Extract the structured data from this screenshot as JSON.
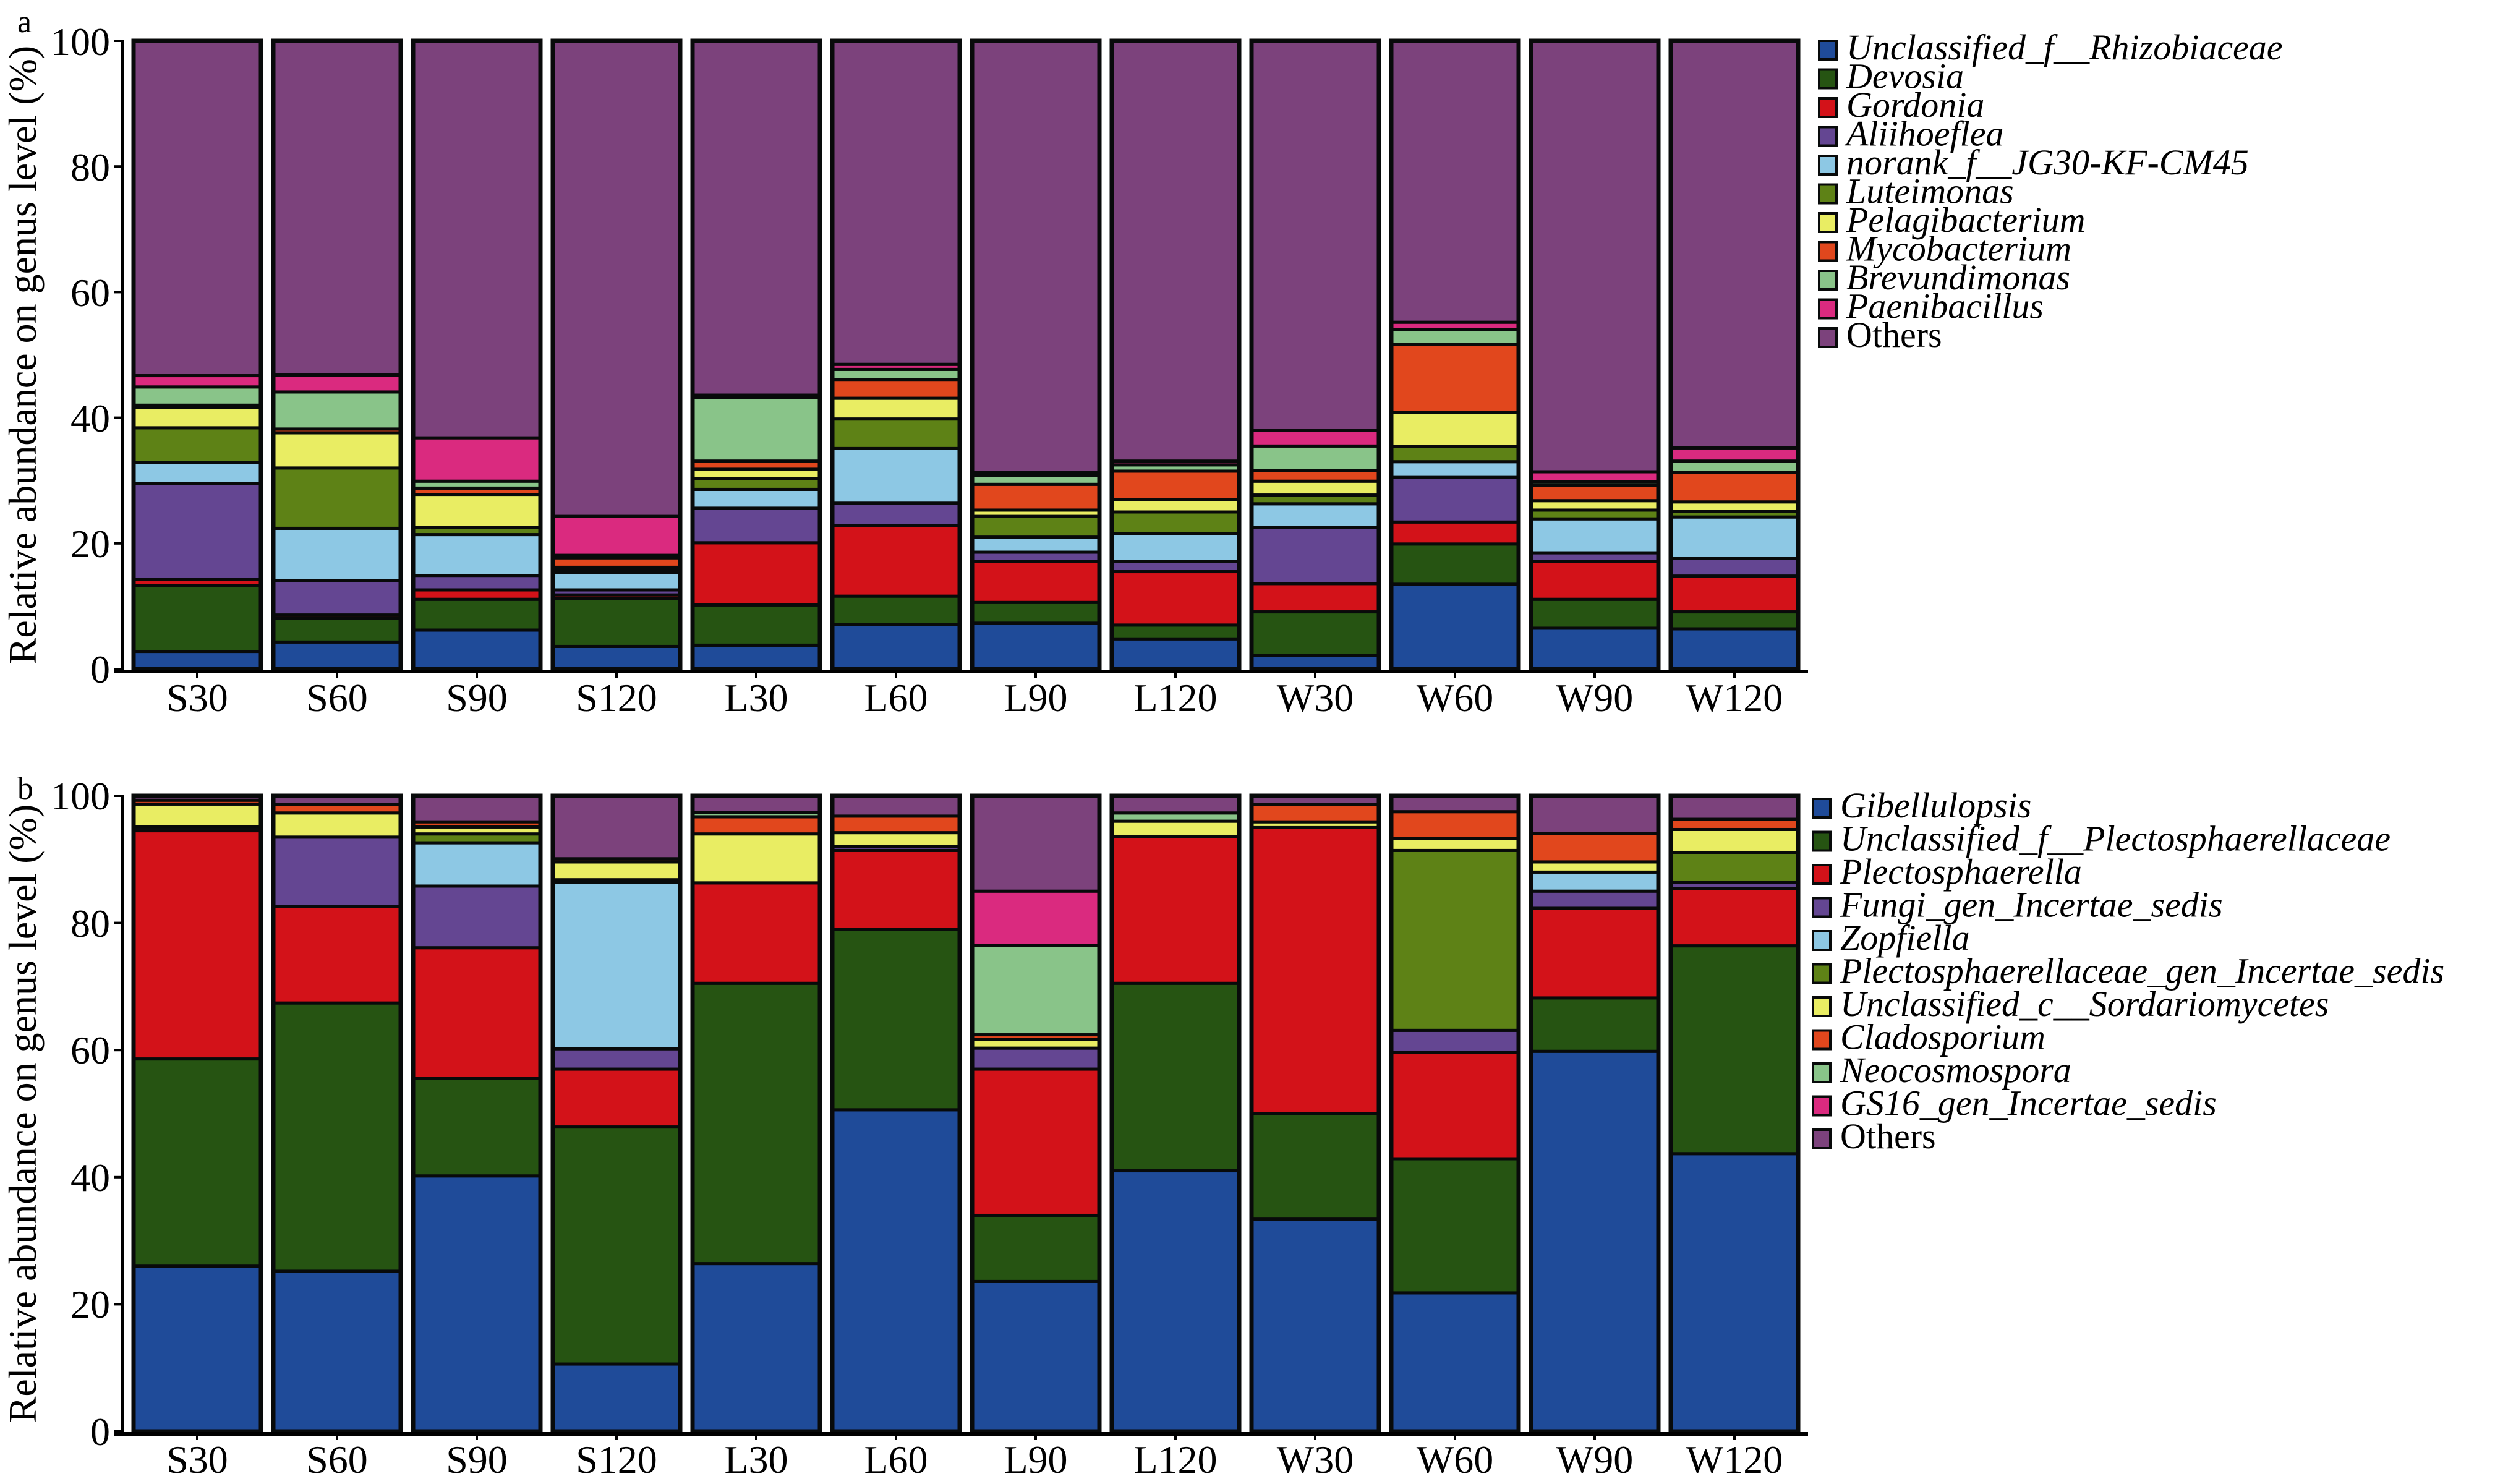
{
  "chart_data": [
    {
      "type": "bar",
      "stacked": true,
      "panel_label": "a",
      "title": "",
      "xlabel": "",
      "ylabel": "Relative abundance on genus level (%)",
      "ylim": [
        0,
        100
      ],
      "yticks": [
        "0",
        "20",
        "40",
        "60",
        "80",
        "100"
      ],
      "grid": false,
      "legend_position": "right",
      "categories": [
        "S30",
        "S60",
        "S90",
        "S120",
        "L30",
        "L60",
        "L90",
        "L120",
        "W30",
        "W60",
        "W90",
        "W120"
      ],
      "series": [
        {
          "name": "Unclassified_f__Rhizobiaceae",
          "italic": true,
          "color": "#1f4b99",
          "values": [
            2.8,
            4.3,
            6.2,
            3.6,
            3.8,
            7.1,
            7.3,
            4.8,
            2.2,
            13.5,
            6.5,
            6.4
          ]
        },
        {
          "name": "Devosia",
          "italic": true,
          "color": "#265412",
          "values": [
            10.5,
            3.8,
            4.9,
            7.6,
            6.4,
            4.5,
            3.3,
            2.2,
            6.9,
            6.4,
            4.6,
            2.7
          ]
        },
        {
          "name": "Gordonia",
          "italic": true,
          "color": "#d31219",
          "values": [
            1.0,
            0.5,
            1.5,
            0.6,
            9.9,
            11.2,
            6.5,
            8.5,
            4.5,
            3.5,
            6.0,
            5.7
          ]
        },
        {
          "name": "Aliihoeflea",
          "italic": true,
          "color": "#644692",
          "values": [
            15.2,
            5.5,
            2.3,
            0.8,
            5.5,
            3.6,
            1.5,
            1.6,
            8.9,
            7.1,
            1.4,
            2.8
          ]
        },
        {
          "name": "norank_f__JG30-KF-CM45",
          "italic": true,
          "color": "#8dc8e4",
          "values": [
            3.4,
            8.3,
            6.5,
            2.8,
            3.0,
            8.7,
            2.4,
            4.5,
            3.8,
            2.5,
            5.4,
            6.6
          ]
        },
        {
          "name": "Luteimonas",
          "italic": true,
          "color": "#5e8216",
          "values": [
            5.5,
            9.6,
            1.1,
            0.4,
            1.7,
            4.7,
            3.3,
            3.4,
            1.4,
            2.4,
            1.4,
            0.9
          ]
        },
        {
          "name": "Pelagibacterium",
          "italic": true,
          "color": "#e9ed63",
          "values": [
            3.2,
            5.6,
            5.3,
            0.4,
            1.5,
            3.3,
            1.0,
            2.0,
            2.2,
            5.4,
            1.5,
            1.5
          ]
        },
        {
          "name": "Mycobacterium",
          "italic": true,
          "color": "#e1471d",
          "values": [
            0.4,
            0.6,
            1.0,
            1.5,
            1.3,
            3.0,
            4.1,
            4.5,
            1.7,
            10.9,
            2.4,
            4.7
          ]
        },
        {
          "name": "Brevundimonas",
          "italic": true,
          "color": "#89c489",
          "values": [
            2.9,
            5.9,
            1.1,
            0.4,
            10.1,
            1.6,
            1.4,
            1.0,
            3.9,
            2.3,
            0.6,
            1.8
          ]
        },
        {
          "name": "Paenibacillus",
          "italic": true,
          "color": "#da2a7f",
          "values": [
            1.8,
            2.7,
            6.9,
            6.2,
            0.4,
            0.8,
            0.5,
            0.6,
            2.5,
            1.2,
            1.6,
            2.1
          ]
        },
        {
          "name": "Others",
          "italic": false,
          "color": "#7c427c",
          "values": [
            53.3,
            53.2,
            63.2,
            75.7,
            56.4,
            51.5,
            68.7,
            66.9,
            62.0,
            44.8,
            68.6,
            64.8
          ]
        }
      ]
    },
    {
      "type": "bar",
      "stacked": true,
      "panel_label": "b",
      "title": "",
      "xlabel": "",
      "ylabel": "Relative abundance on genus level (%)",
      "ylim": [
        0,
        100
      ],
      "yticks": [
        "0",
        "20",
        "40",
        "60",
        "80",
        "100"
      ],
      "grid": false,
      "legend_position": "right",
      "categories": [
        "S30",
        "S60",
        "S90",
        "S120",
        "L30",
        "L60",
        "L90",
        "L120",
        "W30",
        "W60",
        "W90",
        "W120"
      ],
      "series": [
        {
          "name": "Gibellulopsis",
          "italic": true,
          "color": "#1f4b99",
          "values": [
            26.0,
            25.2,
            40.2,
            10.6,
            26.4,
            50.6,
            23.6,
            41.0,
            33.4,
            21.8,
            59.8,
            43.7
          ]
        },
        {
          "name": "Unclassified_f__Plectosphaerellaceae",
          "italic": true,
          "color": "#265412",
          "values": [
            32.6,
            42.2,
            15.3,
            37.3,
            44.1,
            28.4,
            10.4,
            29.5,
            16.6,
            21.1,
            8.4,
            32.7
          ]
        },
        {
          "name": "Plectosphaerella",
          "italic": true,
          "color": "#d31219",
          "values": [
            35.9,
            15.2,
            20.6,
            9.1,
            15.8,
            12.4,
            23.0,
            23.1,
            45.0,
            16.7,
            14.1,
            9.0
          ]
        },
        {
          "name": "Fungi_gen_Incertae_sedis",
          "italic": true,
          "color": "#644692",
          "values": [
            0.6,
            10.9,
            9.7,
            3.2,
            0.0,
            0.6,
            3.3,
            0.0,
            0.0,
            3.5,
            2.7,
            1.0
          ]
        },
        {
          "name": "Zopfiella",
          "italic": true,
          "color": "#8dc8e4",
          "values": [
            0.0,
            0.0,
            6.8,
            26.2,
            0.0,
            0.0,
            0.0,
            0.0,
            0.0,
            0.0,
            3.0,
            0.0
          ]
        },
        {
          "name": "Plectosphaerellaceae_gen_Incertae_sedis",
          "italic": true,
          "color": "#5e8216",
          "values": [
            0.0,
            0.0,
            1.4,
            0.4,
            0.0,
            0.0,
            0.0,
            0.0,
            0.0,
            28.3,
            0.0,
            4.7
          ]
        },
        {
          "name": "Unclassified_c__Sordariomycetes",
          "italic": true,
          "color": "#e9ed63",
          "values": [
            3.6,
            3.8,
            1.1,
            2.8,
            7.7,
            2.2,
            1.4,
            2.4,
            0.9,
            1.9,
            1.6,
            3.6
          ]
        },
        {
          "name": "Cladosporium",
          "italic": true,
          "color": "#e1471d",
          "values": [
            0.6,
            1.3,
            0.8,
            0.5,
            2.7,
            2.6,
            0.7,
            0.0,
            2.7,
            4.2,
            4.5,
            1.6
          ]
        },
        {
          "name": "Neocosmospora",
          "italic": true,
          "color": "#89c489",
          "values": [
            0.0,
            0.0,
            0.0,
            0.0,
            0.7,
            0.0,
            14.1,
            1.3,
            0.0,
            0.0,
            0.0,
            0.0
          ]
        },
        {
          "name": "GS16_gen_Incertae_sedis",
          "italic": true,
          "color": "#da2a7f",
          "values": [
            0.0,
            0.0,
            0.0,
            0.0,
            0.0,
            0.0,
            8.5,
            0.0,
            0.0,
            0.0,
            0.0,
            0.0
          ]
        },
        {
          "name": "Others",
          "italic": false,
          "color": "#7c427c",
          "values": [
            0.7,
            1.4,
            4.1,
            9.9,
            2.6,
            3.2,
            15.0,
            2.7,
            1.4,
            2.5,
            5.9,
            3.7
          ]
        }
      ]
    }
  ]
}
